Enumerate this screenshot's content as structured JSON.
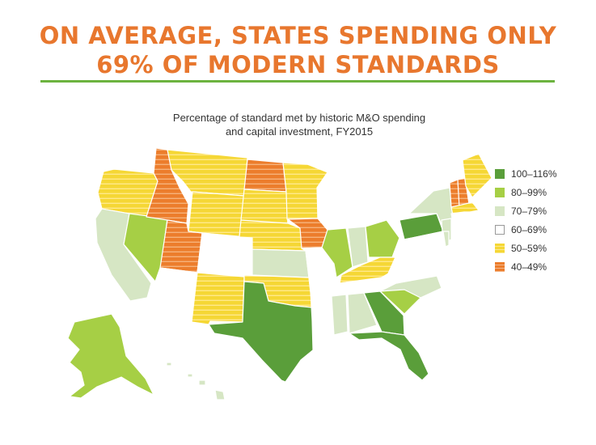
{
  "headline": {
    "line1": "ON AVERAGE, STATES SPENDING ONLY",
    "line2": "69% OF MODERN STANDARDS"
  },
  "map_subtitle": {
    "line1": "Percentage of standard met by historic M&O spending",
    "line2": "and capital investment, FY2015"
  },
  "legend": [
    {
      "key": "g100",
      "label": "100–116%",
      "color": "#5a9e3a",
      "striped": false
    },
    {
      "key": "g80",
      "label": "80–99%",
      "color": "#a6cf45",
      "striped": false
    },
    {
      "key": "g70",
      "label": "70–79%",
      "color": "#d6e6c4",
      "striped": false
    },
    {
      "key": "g60",
      "label": "60–69%",
      "color": "#ffffff",
      "striped": false
    },
    {
      "key": "g50",
      "label": "50–59%",
      "color": "#f5d735",
      "striped": true
    },
    {
      "key": "g40",
      "label": "40–49%",
      "color": "#ec7d2c",
      "striped": true
    }
  ],
  "colors": {
    "title": "#e8772e",
    "rule": "#6cb33f",
    "outline": "#999999"
  }
}
